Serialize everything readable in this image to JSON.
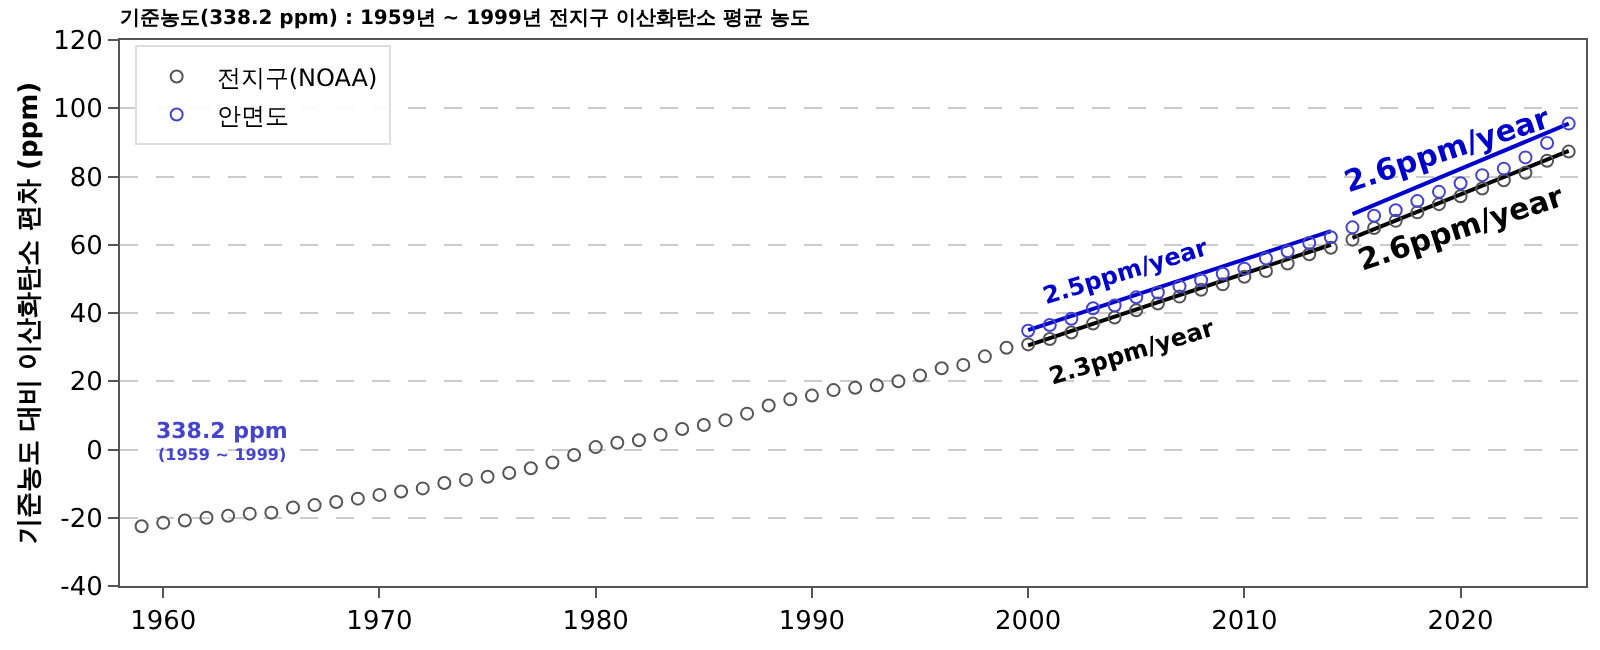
{
  "chart_data": {
    "type": "scatter",
    "title": "기준농도(338.2 ppm) : 1959년 ~ 1999년 전지구 이산화탄소 평균 농도",
    "ylabel": "기준농도 대비 이산화탄소 편차 (ppm)",
    "xlim": [
      1958,
      2025.8
    ],
    "xticks": [
      1960,
      1970,
      1980,
      1990,
      2000,
      2010,
      2020
    ],
    "ylim": [
      -40,
      120
    ],
    "yticks": [
      -40,
      -20,
      0,
      20,
      40,
      60,
      80,
      100,
      120
    ],
    "grid": "y",
    "legend": "top left",
    "marker": "circle",
    "series": [
      {
        "name": "전지구(NOAA)",
        "color": "#555555",
        "x": [
          1959,
          1960,
          1961,
          1962,
          1963,
          1964,
          1965,
          1966,
          1967,
          1968,
          1969,
          1970,
          1971,
          1972,
          1973,
          1974,
          1975,
          1976,
          1977,
          1978,
          1979,
          1980,
          1981,
          1982,
          1983,
          1984,
          1985,
          1986,
          1987,
          1988,
          1989,
          1990,
          1991,
          1992,
          1993,
          1994,
          1995,
          1996,
          1997,
          1998,
          1999,
          2000,
          2001,
          2002,
          2003,
          2004,
          2005,
          2006,
          2007,
          2008,
          2009,
          2010,
          2011,
          2012,
          2013,
          2014,
          2015,
          2016,
          2017,
          2018,
          2019,
          2020,
          2021,
          2022,
          2023,
          2024,
          2025
        ],
        "values": [
          -22.5,
          -21.5,
          -20.8,
          -20.0,
          -19.4,
          -18.8,
          -18.5,
          -17.0,
          -16.3,
          -15.4,
          -14.4,
          -13.3,
          -12.3,
          -11.4,
          -9.8,
          -8.9,
          -8.0,
          -6.9,
          -5.5,
          -3.8,
          -1.6,
          0.7,
          2.0,
          2.7,
          4.3,
          6.0,
          7.2,
          8.6,
          10.5,
          12.9,
          14.7,
          15.8,
          17.4,
          18.1,
          18.8,
          20.0,
          21.7,
          23.8,
          24.8,
          27.3,
          29.8,
          30.8,
          32.4,
          34.3,
          36.9,
          38.7,
          40.8,
          42.8,
          44.8,
          46.8,
          48.4,
          50.6,
          52.3,
          54.5,
          57.2,
          59.1,
          61.5,
          64.9,
          67.0,
          69.5,
          71.9,
          74.2,
          76.5,
          78.9,
          81.1,
          84.6,
          87.3
        ]
      },
      {
        "name": "안면도",
        "color": "#4444cc",
        "x": [
          2000,
          2001,
          2002,
          2003,
          2004,
          2005,
          2006,
          2007,
          2008,
          2009,
          2010,
          2011,
          2012,
          2013,
          2014,
          2015,
          2016,
          2017,
          2018,
          2019,
          2020,
          2021,
          2022,
          2023,
          2024,
          2025
        ],
        "values": [
          34.8,
          36.5,
          38.3,
          41.4,
          42.2,
          44.6,
          46.0,
          47.8,
          49.6,
          51.5,
          53.0,
          56.0,
          58.1,
          60.5,
          62.2,
          65.1,
          68.5,
          70.1,
          72.8,
          75.5,
          78.0,
          80.4,
          82.3,
          85.6,
          89.8,
          95.5
        ]
      },
      {
        "type": "line",
        "marker": "none",
        "color": "#000000",
        "x": [
          2000,
          2014
        ],
        "values": [
          30.5,
          60.0
        ]
      },
      {
        "type": "line",
        "marker": "none",
        "color": "#0000cc",
        "x": [
          2000,
          2014
        ],
        "values": [
          35.0,
          64.0
        ]
      },
      {
        "type": "line",
        "marker": "none",
        "color": "#000000",
        "x": [
          2015,
          2025
        ],
        "values": [
          62.0,
          87.5
        ]
      },
      {
        "type": "line",
        "marker": "none",
        "color": "#0000cc",
        "x": [
          2015,
          2025
        ],
        "values": [
          69.0,
          95.5
        ]
      }
    ],
    "annotations": [
      "338.2 ppm",
      "(1959 ~ 1999)",
      "2.5ppm/year",
      "2.3ppm/year",
      "2.6ppm/year",
      "2.6ppm/year"
    ]
  }
}
